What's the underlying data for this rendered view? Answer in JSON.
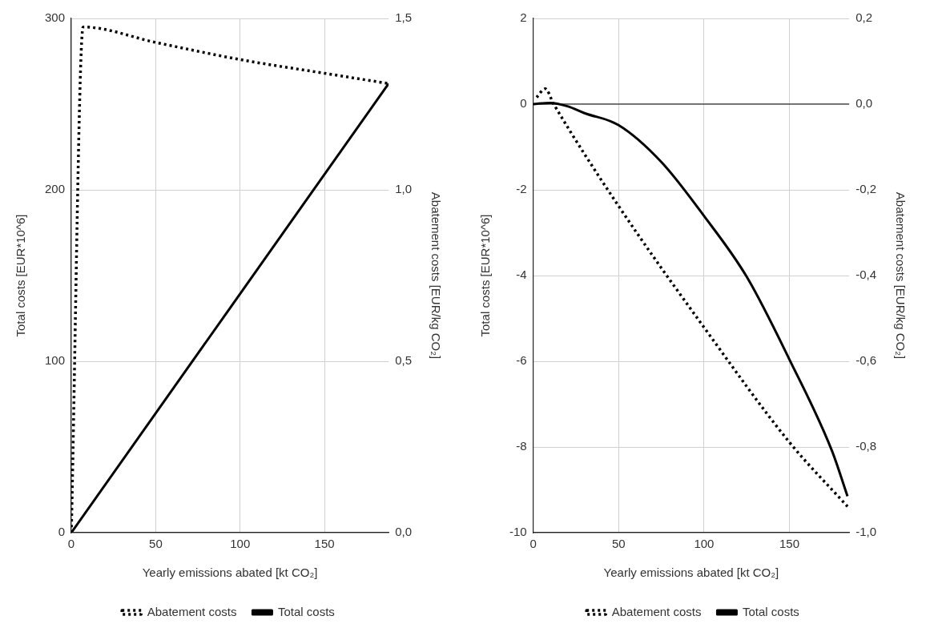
{
  "chart_data": [
    {
      "type": "line",
      "xlabel": "Yearly emissions abated [kt CO₂]",
      "ylabel": "Total costs [EUR*10^6]",
      "y2label": "Abatement costs [EUR/kg CO₂]",
      "xlim": [
        0,
        188
      ],
      "xticks": [
        0,
        50,
        100,
        150
      ],
      "ylim": [
        0,
        300
      ],
      "yticks": [
        0,
        100,
        200,
        300
      ],
      "y2lim": [
        0,
        1.5
      ],
      "y2ticks": [
        {
          "value": 0,
          "label": "0,0"
        },
        {
          "value": 0.5,
          "label": "0,5"
        },
        {
          "value": 1,
          "label": "1,0"
        },
        {
          "value": 1.5,
          "label": "1,5"
        }
      ],
      "grid": true,
      "legend": "bottom",
      "marker": "none",
      "series": [
        {
          "name": "Abatement costs",
          "color": "#000000",
          "axis": "y2",
          "line_style": "dotted",
          "x": [
            0,
            7,
            50,
            100,
            150,
            188
          ],
          "values": [
            0,
            1.475,
            1.43,
            1.38,
            1.34,
            1.31
          ]
        },
        {
          "name": "Total costs",
          "color": "#000000",
          "line_style": "solid",
          "x": [
            0,
            188
          ],
          "values": [
            0,
            262
          ]
        }
      ]
    },
    {
      "type": "line",
      "xlabel": "Yearly emissions abated [kt CO₂]",
      "ylabel": "Total costs [EUR*10^6]",
      "y2label": "Abatement costs [EUR/kg CO₂]",
      "xlim": [
        0,
        185
      ],
      "xticks": [
        0,
        50,
        100,
        150
      ],
      "ylim": [
        -10,
        2
      ],
      "yticks": [
        -10,
        -8,
        -6,
        -4,
        -2,
        0,
        2
      ],
      "y2lim": [
        -1,
        0.2
      ],
      "y2ticks": [
        {
          "value": -1,
          "label": "-1,0"
        },
        {
          "value": -0.8,
          "label": "-0,8"
        },
        {
          "value": -0.6,
          "label": "-0,6"
        },
        {
          "value": -0.4,
          "label": "-0,4"
        },
        {
          "value": -0.2,
          "label": "-0,2"
        },
        {
          "value": 0,
          "label": "0,0"
        },
        {
          "value": 0.2,
          "label": "0,2"
        }
      ],
      "grid": true,
      "legend": "bottom",
      "marker": "none",
      "ref_lines": [
        {
          "axis": "y",
          "value": 0,
          "color": "#000000"
        }
      ],
      "series": [
        {
          "name": "Abatement costs",
          "color": "#000000",
          "axis": "y2",
          "line_style": "dotted",
          "x": [
            2,
            7,
            12,
            50,
            100,
            150,
            184
          ],
          "values": [
            0.016,
            0.036,
            0,
            -0.238,
            -0.521,
            -0.789,
            -0.939
          ]
        },
        {
          "name": "Total costs",
          "color": "#000000",
          "line_style": "solid",
          "x": [
            0,
            10,
            20,
            30,
            50,
            75,
            100,
            125,
            150,
            175,
            184
          ],
          "values": [
            0,
            0.03,
            -0.05,
            -0.21,
            -0.49,
            -1.35,
            -2.61,
            -4.03,
            -5.96,
            -8.1,
            -9.15
          ]
        }
      ]
    }
  ]
}
